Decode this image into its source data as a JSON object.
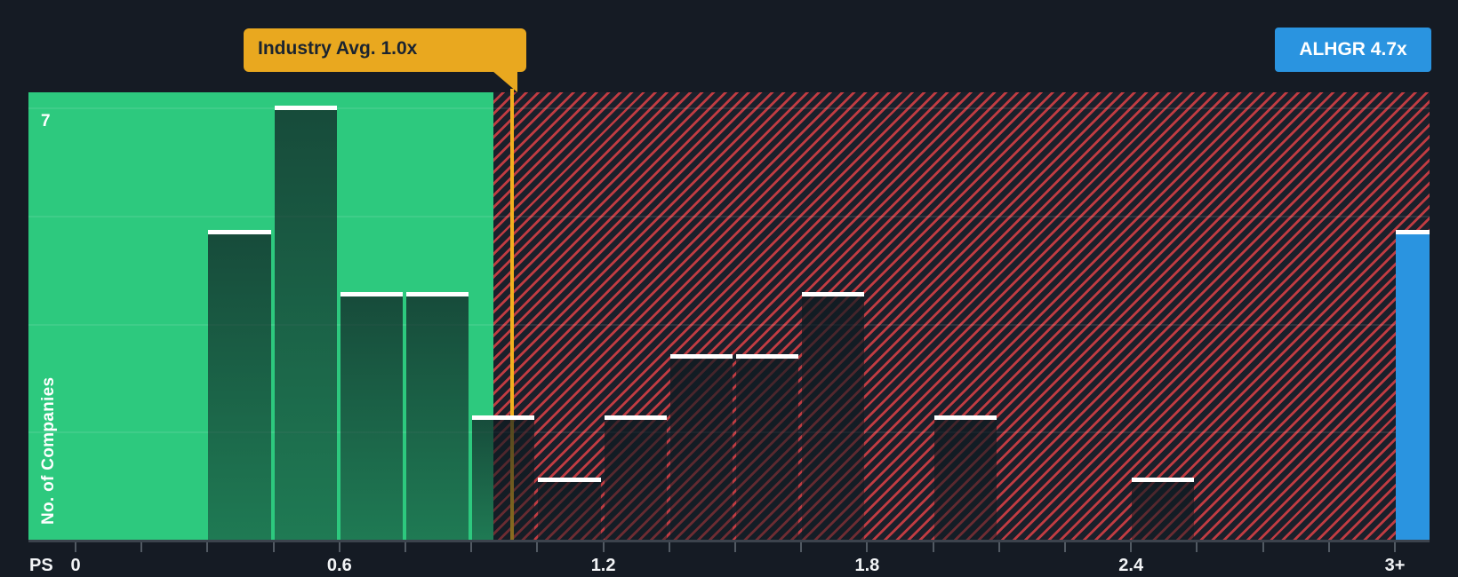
{
  "industry_marker": {
    "tooltip_label": "Industry Avg. 1.0x",
    "line_color": "#f1b11e",
    "tooltip_bg": "#e9a81f",
    "tooltip_text_color": "#1b2430"
  },
  "company_badge": {
    "label": "ALHGR 4.7x",
    "bg": "#2a94e0",
    "text_color": "#ffffff"
  },
  "y_axis": {
    "max_label": "7",
    "title": "No. of Companies"
  },
  "x_axis": {
    "unit_label": "PS",
    "tick_labels": [
      {
        "text": "0",
        "bin_index": 0
      },
      {
        "text": "0.6",
        "bin_index": 4
      },
      {
        "text": "1.2",
        "bin_index": 8
      },
      {
        "text": "1.8",
        "bin_index": 12
      },
      {
        "text": "2.4",
        "bin_index": 16
      },
      {
        "text": "3+",
        "bin_index": 20
      }
    ]
  },
  "chart_data": {
    "type": "bar",
    "subtype": "histogram",
    "title": "Price-to-Sales ratio distribution vs industry average",
    "xlabel": "PS",
    "ylabel": "No. of Companies",
    "ylim": [
      0,
      7
    ],
    "bin_start": 0,
    "bin_width": 0.15,
    "bin_ranges": [
      "0.00-0.15",
      "0.15-0.30",
      "0.30-0.45",
      "0.45-0.60",
      "0.60-0.75",
      "0.75-0.90",
      "0.90-1.05",
      "1.05-1.20",
      "1.20-1.35",
      "1.35-1.50",
      "1.50-1.65",
      "1.65-1.80",
      "1.80-1.95",
      "1.95-2.10",
      "2.10-2.25",
      "2.25-2.40",
      "2.40-2.55",
      "2.55-2.70",
      "2.70-2.85",
      "2.85-3.00"
    ],
    "values": [
      0,
      0,
      5,
      7,
      4,
      4,
      2,
      1,
      2,
      3,
      3,
      4,
      0,
      2,
      0,
      0,
      1,
      0,
      0,
      0
    ],
    "industry_avg": {
      "value": 1.0,
      "label": "Industry Avg. 1.0x"
    },
    "company": {
      "ticker": "ALHGR",
      "ps_value": 4.7,
      "badge": "ALHGR 4.7x",
      "plotted_bucket": "3+",
      "bar_height_units": 5,
      "bar_color": "#2a94e0"
    },
    "zones": {
      "below_avg_fill": "#2dc97e",
      "above_avg_background": "#1a202b",
      "above_avg_hatch_color": "#ea4348"
    },
    "grid": "horizontal quarter lines",
    "legend_position": "none"
  }
}
